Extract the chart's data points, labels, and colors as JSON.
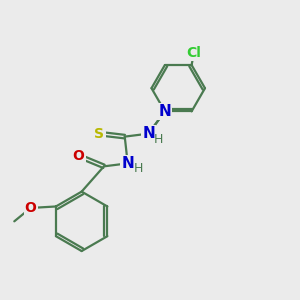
{
  "bg_color": "#ebebeb",
  "bond_color": "#4a7a50",
  "atom_colors": {
    "N": "#0000cc",
    "O": "#cc0000",
    "S": "#b8b800",
    "Cl": "#33cc33",
    "C": "#4a7a50"
  },
  "font_size": 10,
  "lw": 1.6,
  "dbo": 0.055
}
